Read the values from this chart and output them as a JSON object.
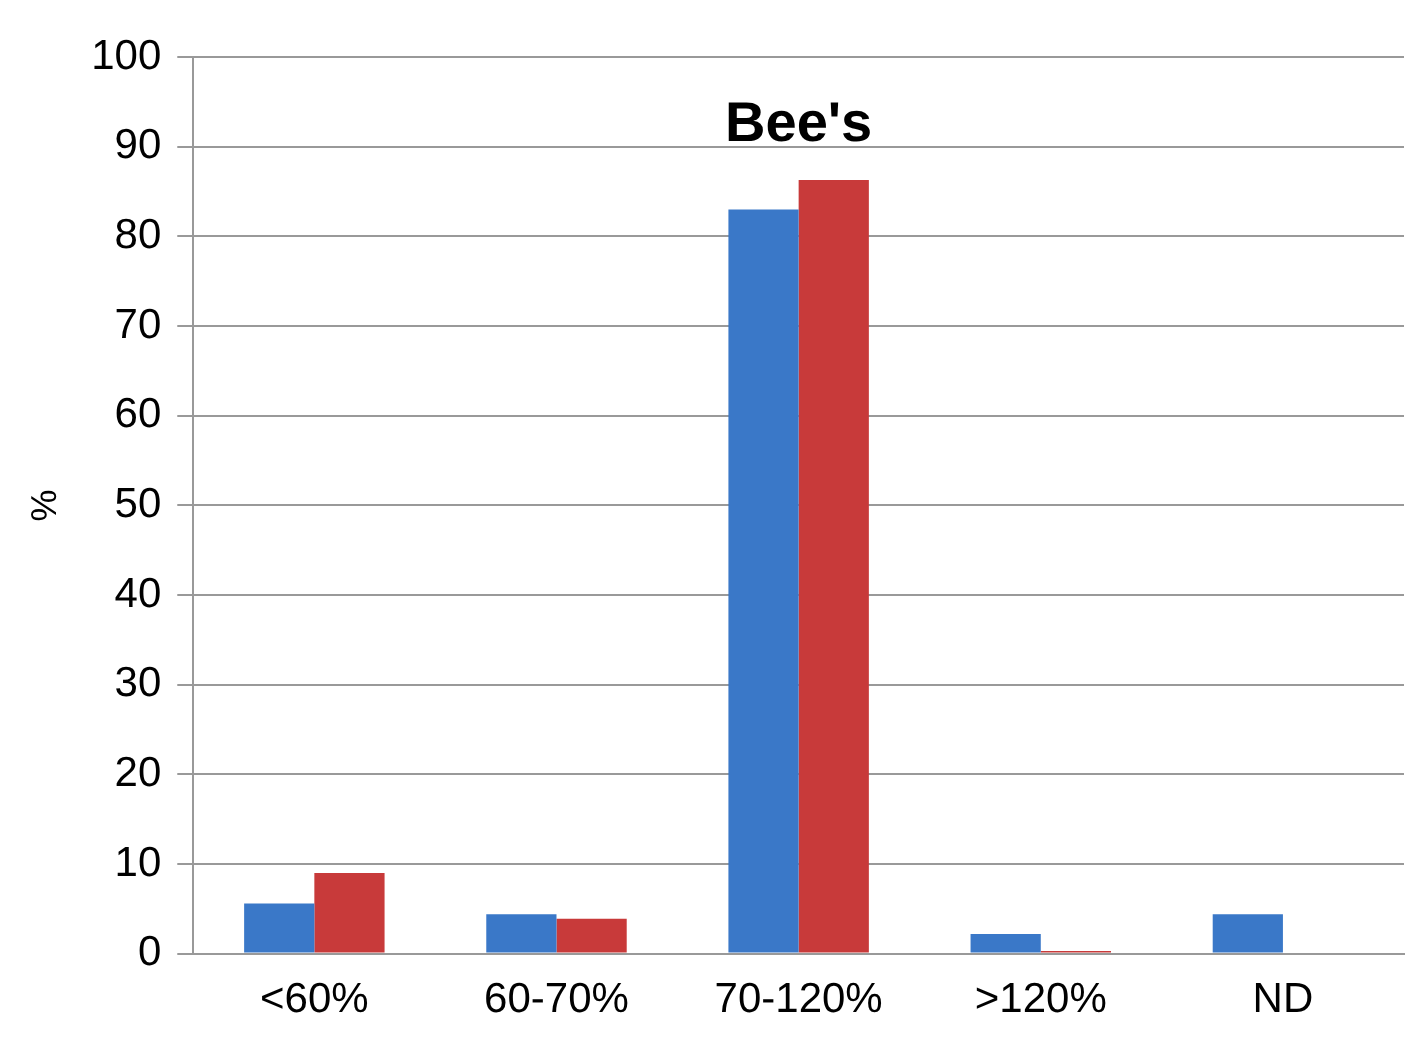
{
  "chart_data": {
    "type": "bar",
    "title": "Bee's",
    "ylabel": "%",
    "categories": [
      "<60%",
      "60-70%",
      "70-120%",
      ">120%",
      "ND"
    ],
    "series": [
      {
        "color": "#3a78c8",
        "values": [
          5.6,
          4.4,
          83,
          2.2,
          4.4
        ]
      },
      {
        "color": "#c83a3a",
        "values": [
          9,
          3.9,
          86.3,
          0.3,
          null
        ]
      }
    ],
    "ylim": [
      0,
      100
    ],
    "yticks": [
      0,
      10,
      20,
      30,
      40,
      50,
      60,
      70,
      80,
      90,
      100
    ],
    "grid": "y",
    "legend": false
  }
}
